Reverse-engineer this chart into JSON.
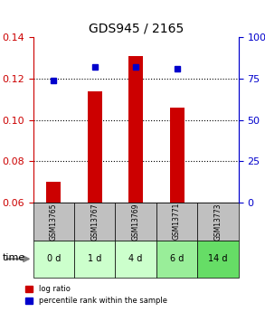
{
  "title": "GDS945 / 2165",
  "samples": [
    "GSM13765",
    "GSM13767",
    "GSM13769",
    "GSM13771",
    "GSM13773"
  ],
  "time_labels": [
    "0 d",
    "1 d",
    "4 d",
    "6 d",
    "14 d"
  ],
  "log_ratio": [
    0.07,
    0.114,
    0.131,
    0.106,
    0.06
  ],
  "percentile_rank": [
    74,
    82,
    82,
    81,
    0
  ],
  "log_ratio_base": 0.06,
  "ylim_left": [
    0.06,
    0.14
  ],
  "ylim_right": [
    0,
    100
  ],
  "yticks_left": [
    0.06,
    0.08,
    0.1,
    0.12,
    0.14
  ],
  "yticks_right": [
    0,
    25,
    50,
    75,
    100
  ],
  "bar_color": "#cc0000",
  "dot_color": "#0000cc",
  "bar_width": 0.35,
  "grid_color": "#000000",
  "sample_bg": "#c0c0c0",
  "time_bg_colors": [
    "#ccffcc",
    "#ccffcc",
    "#ccffcc",
    "#99ee99",
    "#66dd66"
  ],
  "left_axis_color": "#cc0000",
  "right_axis_color": "#0000cc",
  "legend_bar_label": "log ratio",
  "legend_dot_label": "percentile rank within the sample",
  "fig_width": 2.93,
  "fig_height": 3.45
}
